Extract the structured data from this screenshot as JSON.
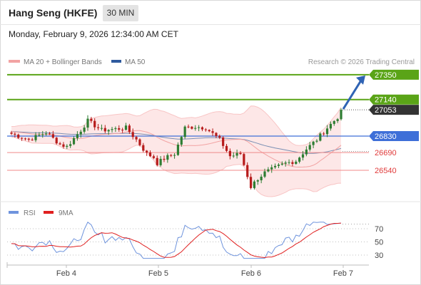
{
  "header": {
    "title": "Hang Seng (HKFE)",
    "timeframe": "30 MIN",
    "datetime": "Monday, February 9, 2026 12:34:00 AM CET"
  },
  "legend": {
    "ma20_bb": "MA 20 + Bollinger Bands",
    "ma50": "MA 50",
    "credit": "Research © 2026 Trading Central"
  },
  "rsi_legend": {
    "rsi": "RSI",
    "ma9": "9MA"
  },
  "colors": {
    "up_candle": "#2e7d32",
    "down_candle": "#b71c1c",
    "bollinger_fill": "#fde3e3",
    "bollinger_line": "#f8c5c5",
    "ma20": "#f2a3a3",
    "ma50": "#7a8fb3",
    "pivot": "#3e6fd8",
    "resistance": "#5aa417",
    "support": "#f08a8a",
    "target_arrow": "#2f63b4",
    "rsi_line": "#6f94dd",
    "rsi_ma": "#e02020"
  },
  "chart_data": [
    {
      "type": "candlestick",
      "title": "Hang Seng (HKFE)",
      "timeframe": "30 MIN",
      "xlabels": [
        "Feb 4",
        "Feb 5",
        "Feb 6",
        "Feb 7"
      ],
      "ylim": [
        26310,
        27420
      ],
      "levels": [
        {
          "label": "27350",
          "value": 27350,
          "kind": "resistance"
        },
        {
          "label": "27140",
          "value": 27140,
          "kind": "resistance"
        },
        {
          "label": "27053",
          "value": 27053,
          "kind": "last"
        },
        {
          "label": "26830",
          "value": 26830,
          "kind": "pivot"
        },
        {
          "label": "26690",
          "value": 26690,
          "kind": "support"
        },
        {
          "label": "26540",
          "value": 26540,
          "kind": "support"
        }
      ],
      "target": {
        "from": 27053,
        "to": 27350
      },
      "series": [
        {
          "name": "MA 20 + Bollinger Bands"
        },
        {
          "name": "MA 50"
        }
      ]
    },
    {
      "type": "line",
      "ylim": [
        10,
        95
      ],
      "yticks": [
        70,
        50,
        30
      ],
      "series": [
        {
          "name": "RSI"
        },
        {
          "name": "9MA"
        }
      ]
    }
  ]
}
